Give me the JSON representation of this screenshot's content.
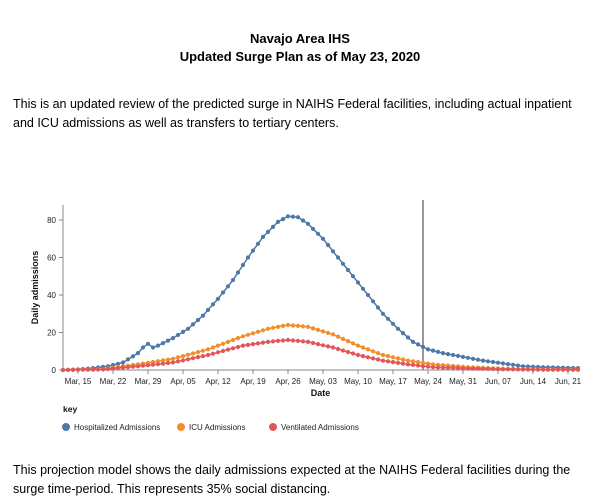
{
  "header": {
    "title": "Navajo Area IHS",
    "subtitle": "Updated Surge Plan as of May 23, 2020"
  },
  "intro_text": "This is an updated review of the predicted surge in NAIHS Federal facilities, including actual inpatient and ICU admissions as well as transfers to tertiary centers.",
  "footer_text": "This projection model shows the daily admissions expected at the NAIHS Federal facilities during the surge time-period. This represents 35% social distancing.",
  "chart_data": {
    "type": "line",
    "title": "",
    "xlabel": "Date",
    "ylabel": "Daily admissions",
    "x_start": "2020-03-12",
    "x_end": "2020-06-23",
    "x_ticks": [
      "Mar, 15",
      "Mar, 22",
      "Mar, 29",
      "Apr, 05",
      "Apr, 12",
      "Apr, 19",
      "Apr, 26",
      "May, 03",
      "May, 10",
      "May, 17",
      "May, 24",
      "May, 31",
      "Jun, 07",
      "Jun, 14",
      "Jun, 21"
    ],
    "ylim": [
      0,
      88
    ],
    "y_ticks": [
      0,
      20,
      40,
      60,
      80
    ],
    "marker_date": "2020-05-23",
    "grid": false,
    "legend_title": "key",
    "legend_position": "bottom-left",
    "series": [
      {
        "name": "Hospitalized Admissions",
        "color": "#4e79a7",
        "points": [
          [
            "2020-03-12",
            0
          ],
          [
            "2020-03-15",
            0.3
          ],
          [
            "2020-03-18",
            1
          ],
          [
            "2020-03-21",
            2
          ],
          [
            "2020-03-24",
            4
          ],
          [
            "2020-03-27",
            9
          ],
          [
            "2020-03-28",
            12
          ],
          [
            "2020-03-29",
            14
          ],
          [
            "2020-03-30",
            12
          ],
          [
            "2020-03-31",
            13
          ],
          [
            "2020-04-03",
            17
          ],
          [
            "2020-04-06",
            22
          ],
          [
            "2020-04-09",
            29
          ],
          [
            "2020-04-12",
            38
          ],
          [
            "2020-04-15",
            48
          ],
          [
            "2020-04-18",
            60
          ],
          [
            "2020-04-21",
            71
          ],
          [
            "2020-04-24",
            79
          ],
          [
            "2020-04-26",
            82
          ],
          [
            "2020-04-28",
            81.5
          ],
          [
            "2020-04-30",
            78
          ],
          [
            "2020-05-03",
            70
          ],
          [
            "2020-05-06",
            60
          ],
          [
            "2020-05-09",
            50
          ],
          [
            "2020-05-12",
            40
          ],
          [
            "2020-05-15",
            30
          ],
          [
            "2020-05-18",
            22
          ],
          [
            "2020-05-21",
            15
          ],
          [
            "2020-05-24",
            11
          ],
          [
            "2020-05-27",
            9
          ],
          [
            "2020-05-31",
            7
          ],
          [
            "2020-06-04",
            5
          ],
          [
            "2020-06-08",
            3.5
          ],
          [
            "2020-06-12",
            2
          ],
          [
            "2020-06-16",
            1.5
          ],
          [
            "2020-06-23",
            1
          ]
        ]
      },
      {
        "name": "ICU Admissions",
        "color": "#f28e2b",
        "points": [
          [
            "2020-03-12",
            0
          ],
          [
            "2020-03-20",
            0.5
          ],
          [
            "2020-03-27",
            3
          ],
          [
            "2020-04-03",
            6
          ],
          [
            "2020-04-10",
            11
          ],
          [
            "2020-04-17",
            18
          ],
          [
            "2020-04-22",
            22
          ],
          [
            "2020-04-26",
            24
          ],
          [
            "2020-04-30",
            23
          ],
          [
            "2020-05-05",
            19
          ],
          [
            "2020-05-10",
            13
          ],
          [
            "2020-05-15",
            8
          ],
          [
            "2020-05-20",
            5
          ],
          [
            "2020-05-25",
            3
          ],
          [
            "2020-06-01",
            1.5
          ],
          [
            "2020-06-08",
            0.7
          ],
          [
            "2020-06-15",
            0.3
          ],
          [
            "2020-06-23",
            0.2
          ]
        ]
      },
      {
        "name": "Ventilated Admissions",
        "color": "#e15759",
        "points": [
          [
            "2020-03-12",
            0
          ],
          [
            "2020-03-20",
            0.3
          ],
          [
            "2020-03-27",
            2
          ],
          [
            "2020-04-03",
            4
          ],
          [
            "2020-04-10",
            8
          ],
          [
            "2020-04-17",
            13
          ],
          [
            "2020-04-22",
            15
          ],
          [
            "2020-04-26",
            16
          ],
          [
            "2020-04-30",
            15
          ],
          [
            "2020-05-05",
            12
          ],
          [
            "2020-05-10",
            8
          ],
          [
            "2020-05-15",
            5
          ],
          [
            "2020-05-20",
            3
          ],
          [
            "2020-05-25",
            1.5
          ],
          [
            "2020-06-01",
            0.8
          ],
          [
            "2020-06-08",
            0.4
          ],
          [
            "2020-06-15",
            0.2
          ],
          [
            "2020-06-23",
            0.1
          ]
        ]
      }
    ]
  }
}
